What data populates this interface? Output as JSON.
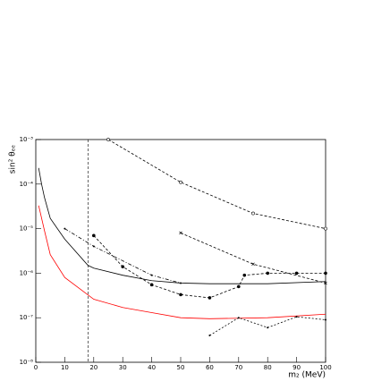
{
  "chart_data": {
    "type": "line",
    "y_scale": "log",
    "x_label": "m₂ (MeV)",
    "y_label": "sin² θₑₑ",
    "xlim": [
      0,
      100
    ],
    "ylim": [
      1e-08,
      0.001
    ],
    "xticks": [
      0,
      10,
      20,
      30,
      40,
      50,
      60,
      70,
      80,
      90,
      100
    ],
    "yticks": [
      {
        "value": 1e-08,
        "label": "10⁻⁸"
      },
      {
        "value": 1e-07,
        "label": "10⁻⁷"
      },
      {
        "value": 1e-06,
        "label": "10⁻⁶"
      },
      {
        "value": 1e-05,
        "label": "10⁻⁵"
      },
      {
        "value": 0.0001,
        "label": "10⁻⁴"
      },
      {
        "value": 0.001,
        "label": "10⁻³"
      }
    ],
    "reference_line_x": 18,
    "series": [
      {
        "color": "#000000",
        "dash": "3,2",
        "marker": "open-circle",
        "x": [
          25,
          50,
          75,
          100
        ],
        "values": [
          0.001,
          0.00011,
          2.2e-05,
          1e-05
        ]
      },
      {
        "color": "#000000",
        "dash": "3,2",
        "marker": "cross",
        "x": [
          50,
          75,
          100
        ],
        "values": [
          8e-06,
          1.6e-06,
          6e-07
        ]
      },
      {
        "color": "#000000",
        "dash": "4,2,1,2",
        "marker": "dot",
        "x": [
          10,
          20,
          40,
          50
        ],
        "values": [
          1e-05,
          4e-06,
          9e-07,
          6e-07
        ]
      },
      {
        "color": "#000000",
        "dash": "3,2",
        "marker": "filled-circle",
        "x": [
          20,
          30,
          40,
          50,
          60,
          70,
          72,
          80,
          90,
          100
        ],
        "values": [
          7e-06,
          1.4e-06,
          5.5e-07,
          3.3e-07,
          2.8e-07,
          5e-07,
          9e-07,
          1e-06,
          1e-06,
          1e-06
        ]
      },
      {
        "color": "#000000",
        "dash": "none",
        "marker": "none",
        "x": [
          1,
          2,
          3,
          5,
          10,
          18,
          20,
          30,
          40,
          50,
          60,
          70,
          80,
          100
        ],
        "values": [
          0.00023,
          0.0001,
          5e-05,
          1.7e-05,
          5.8e-06,
          1.5e-06,
          1.3e-06,
          9e-07,
          6.8e-07,
          6e-07,
          5.8e-07,
          5.8e-07,
          5.8e-07,
          6.5e-07
        ]
      },
      {
        "color": "#ff0000",
        "dash": "none",
        "marker": "none",
        "x": [
          1,
          3,
          5,
          10,
          20,
          30,
          40,
          50,
          60,
          80,
          100
        ],
        "values": [
          3.3e-05,
          9e-06,
          2.6e-06,
          8e-07,
          2.6e-07,
          1.7e-07,
          1.3e-07,
          1e-07,
          9.5e-08,
          1e-07,
          1.2e-07
        ]
      },
      {
        "color": "#000000",
        "dash": "2,2",
        "marker": "dot",
        "x": [
          60,
          70,
          80,
          90,
          100
        ],
        "values": [
          4e-08,
          1e-07,
          6e-08,
          1.05e-07,
          9e-08
        ]
      }
    ]
  }
}
